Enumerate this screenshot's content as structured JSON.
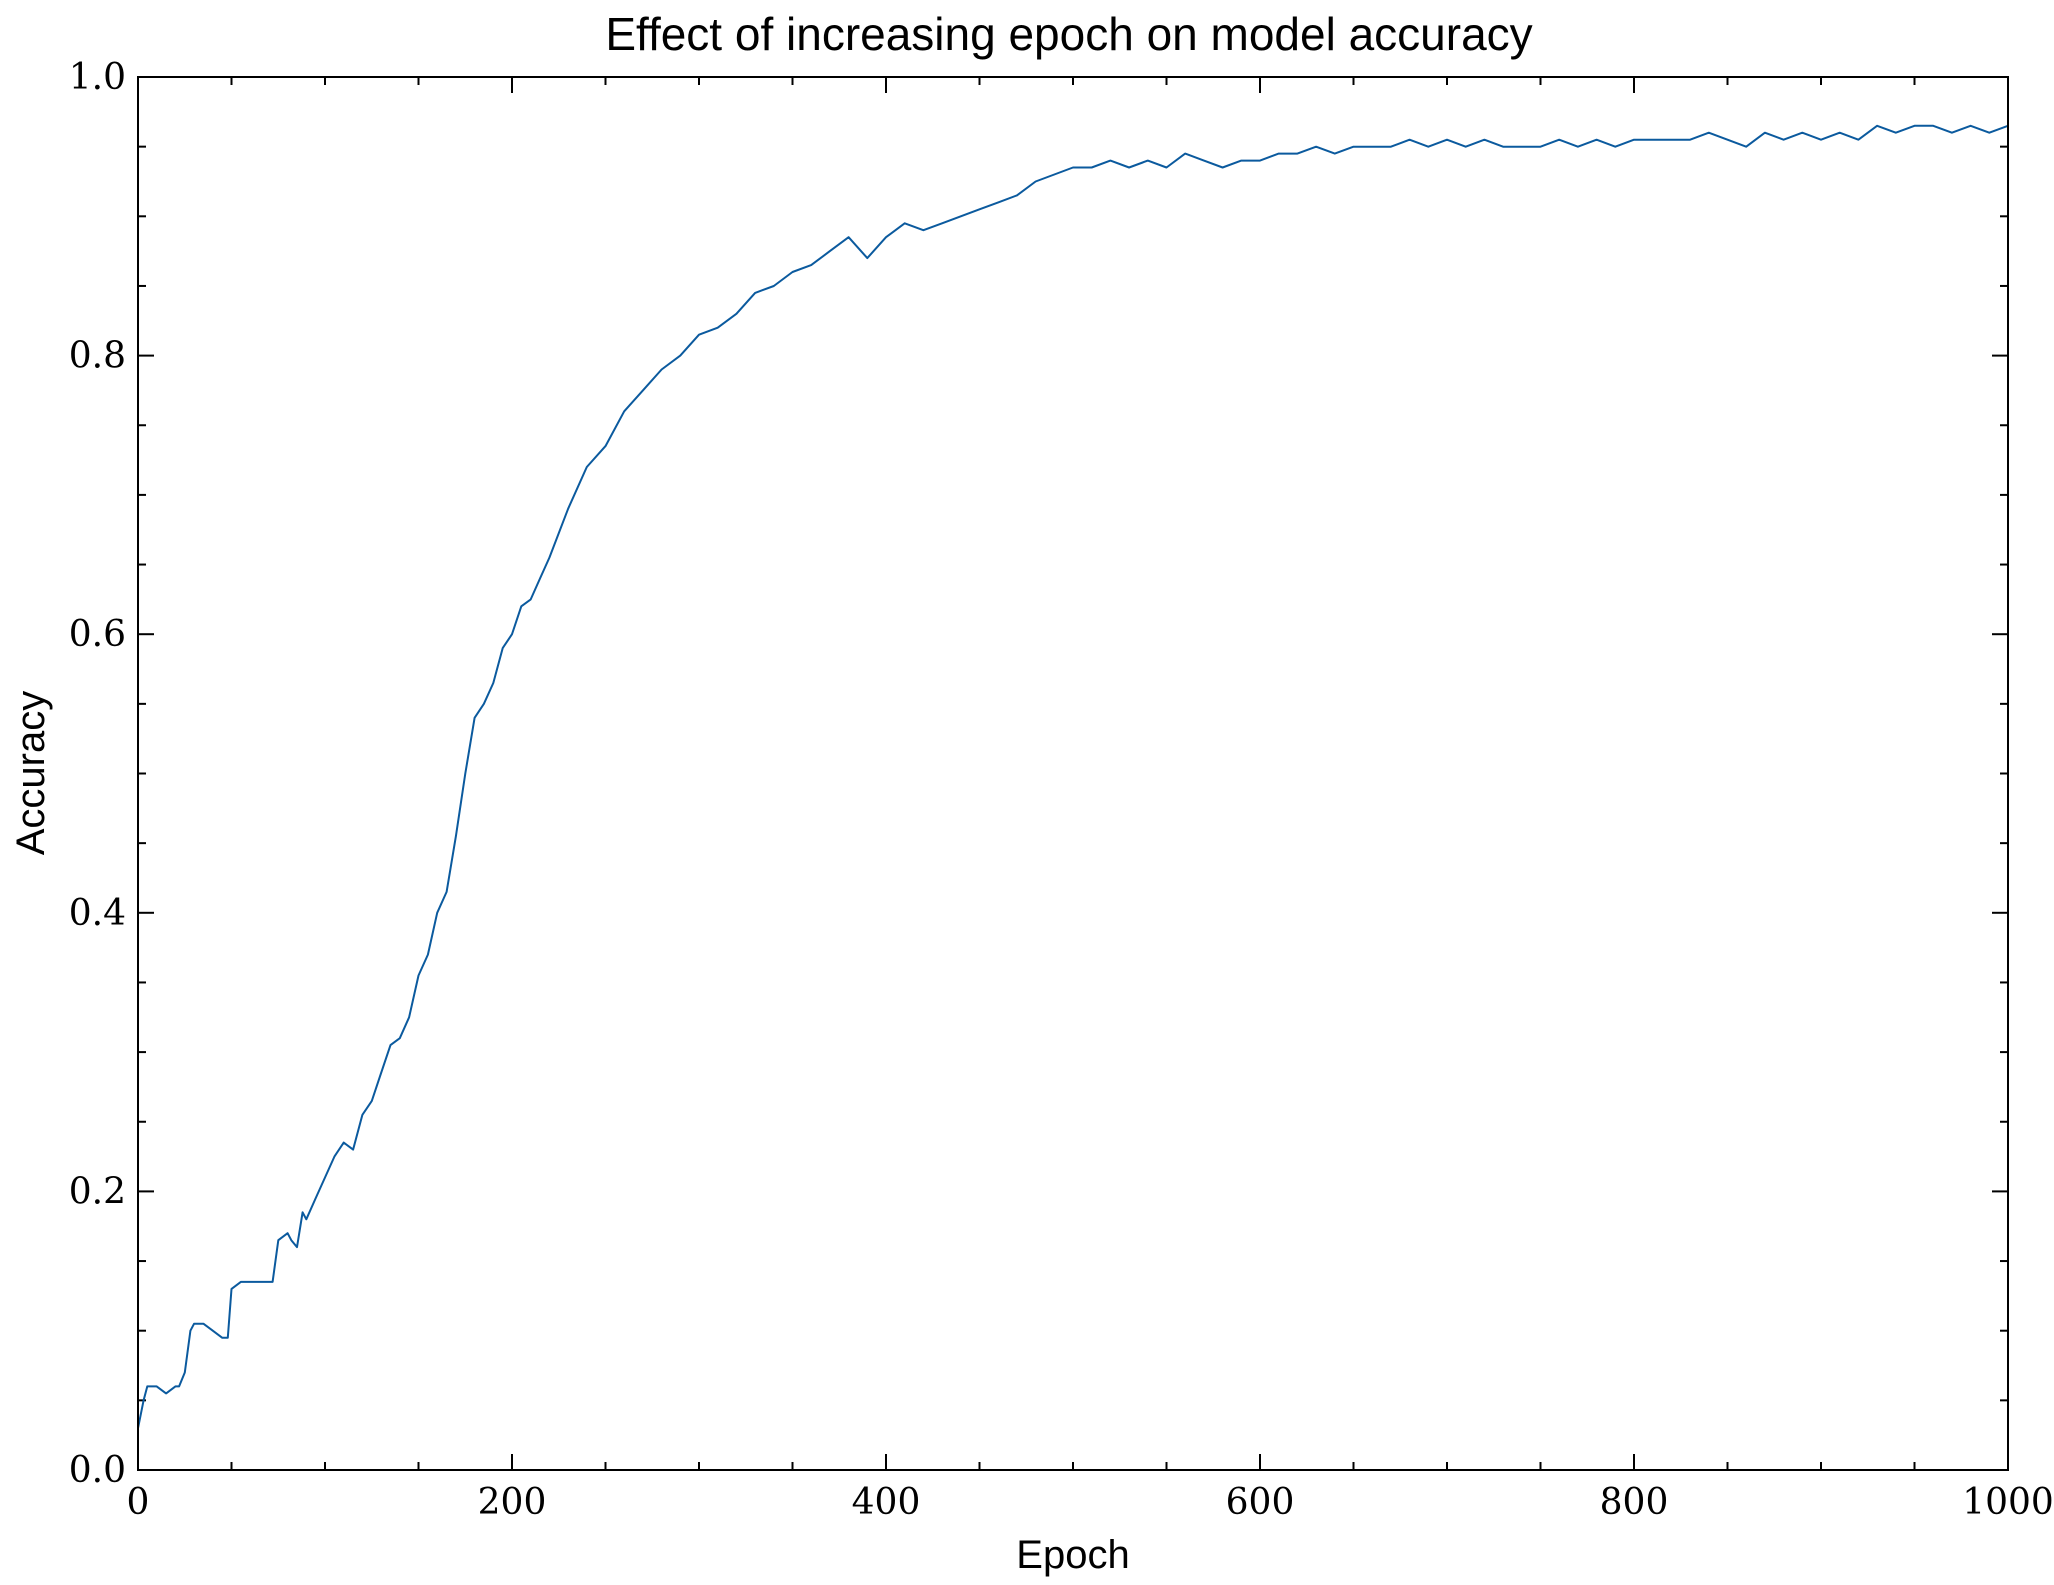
{
  "chart_data": {
    "type": "line",
    "title": "Effect of increasing epoch on model accuracy",
    "xlabel": "Epoch",
    "ylabel": "Accuracy",
    "xlim": [
      0,
      1000
    ],
    "ylim": [
      0.0,
      1.0
    ],
    "x_ticks": [
      0,
      200,
      400,
      600,
      800,
      1000
    ],
    "x_tick_labels": [
      "0",
      "200",
      "400",
      "600",
      "800",
      "1000"
    ],
    "y_ticks": [
      0.0,
      0.2,
      0.4,
      0.6,
      0.8,
      1.0
    ],
    "y_tick_labels": [
      "0.0",
      "0.2",
      "0.4",
      "0.6",
      "0.8",
      "1.0"
    ],
    "x_minor_step": 50,
    "y_minor_step": 0.05,
    "grid": false,
    "line_color": "#0b5a9e",
    "series": [
      {
        "x": [
          0,
          3,
          5,
          10,
          15,
          20,
          22,
          25,
          28,
          30,
          35,
          40,
          45,
          48,
          50,
          55,
          60,
          65,
          70,
          72,
          75,
          80,
          82,
          85,
          88,
          90,
          95,
          100,
          105,
          110,
          115,
          120,
          125,
          130,
          135,
          140,
          145,
          150,
          155,
          160,
          165,
          170,
          175,
          180,
          185,
          190,
          195,
          200,
          205,
          210,
          215,
          220,
          230,
          240,
          250,
          260,
          270,
          280,
          290,
          300,
          310,
          320,
          330,
          340,
          350,
          360,
          370,
          380,
          390,
          400,
          410,
          420,
          430,
          440,
          450,
          460,
          470,
          480,
          490,
          500,
          510,
          520,
          530,
          540,
          550,
          560,
          570,
          580,
          590,
          600,
          610,
          620,
          630,
          640,
          650,
          660,
          670,
          680,
          690,
          700,
          710,
          720,
          730,
          740,
          750,
          760,
          770,
          780,
          790,
          800,
          810,
          820,
          830,
          840,
          850,
          860,
          870,
          880,
          890,
          900,
          910,
          920,
          930,
          940,
          950,
          960,
          970,
          980,
          990,
          1000
        ],
        "values": [
          0.03,
          0.05,
          0.06,
          0.06,
          0.055,
          0.06,
          0.06,
          0.07,
          0.1,
          0.105,
          0.105,
          0.1,
          0.095,
          0.095,
          0.13,
          0.135,
          0.135,
          0.135,
          0.135,
          0.135,
          0.165,
          0.17,
          0.165,
          0.16,
          0.185,
          0.18,
          0.195,
          0.21,
          0.225,
          0.235,
          0.23,
          0.255,
          0.265,
          0.285,
          0.305,
          0.31,
          0.325,
          0.355,
          0.37,
          0.4,
          0.415,
          0.455,
          0.5,
          0.54,
          0.55,
          0.565,
          0.59,
          0.6,
          0.62,
          0.625,
          0.64,
          0.655,
          0.69,
          0.72,
          0.735,
          0.76,
          0.775,
          0.79,
          0.8,
          0.815,
          0.82,
          0.83,
          0.845,
          0.85,
          0.86,
          0.865,
          0.875,
          0.885,
          0.87,
          0.885,
          0.895,
          0.89,
          0.895,
          0.9,
          0.905,
          0.91,
          0.915,
          0.925,
          0.93,
          0.935,
          0.935,
          0.94,
          0.935,
          0.94,
          0.935,
          0.945,
          0.94,
          0.935,
          0.94,
          0.94,
          0.945,
          0.945,
          0.95,
          0.945,
          0.95,
          0.95,
          0.95,
          0.955,
          0.95,
          0.955,
          0.95,
          0.955,
          0.95,
          0.95,
          0.95,
          0.955,
          0.95,
          0.955,
          0.95,
          0.955,
          0.955,
          0.955,
          0.955,
          0.96,
          0.955,
          0.95,
          0.96,
          0.955,
          0.96,
          0.955,
          0.96,
          0.955,
          0.965,
          0.96,
          0.965,
          0.965,
          0.96,
          0.965,
          0.96,
          0.965
        ]
      }
    ]
  }
}
